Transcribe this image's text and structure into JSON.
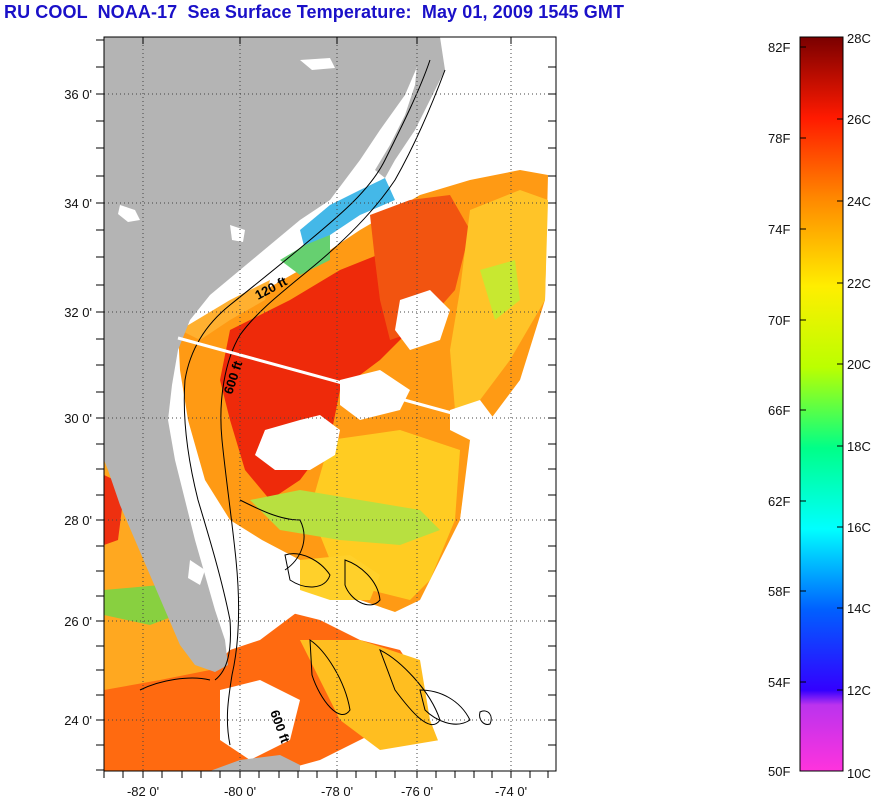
{
  "title": "RU COOL  NOAA-17  Sea Surface Temperature:  May 01, 2009 1545 GMT",
  "map": {
    "lat_labels": [
      "36 0'",
      "34 0'",
      "32 0'",
      "30 0'",
      "28 0'",
      "26 0'",
      "24 0'"
    ],
    "lon_labels": [
      "-82 0'",
      "-80 0'",
      "-78 0'",
      "-76 0'",
      "-74 0'"
    ],
    "contour_labels": {
      "c120": "120 ft",
      "c600a": "600 ft",
      "c600b": "600 ft"
    },
    "colors": {
      "land": "#b4b4b4",
      "cloud": "#ffffff"
    }
  },
  "colorbar": {
    "f_labels": [
      "82F",
      "78F",
      "74F",
      "70F",
      "66F",
      "62F",
      "58F",
      "54F",
      "50F"
    ],
    "c_labels": [
      "28C",
      "26C",
      "24C",
      "22C",
      "20C",
      "18C",
      "16C",
      "14C",
      "12C",
      "10C"
    ],
    "range_c": [
      10,
      28
    ],
    "colors_bottom_to_top": [
      "#ff33cc",
      "#9933ff",
      "#0000ff",
      "#0088ff",
      "#00ffff",
      "#00ff88",
      "#88ff00",
      "#ffff00",
      "#ffaa00",
      "#ff5500",
      "#ff0000",
      "#7a0000"
    ]
  }
}
